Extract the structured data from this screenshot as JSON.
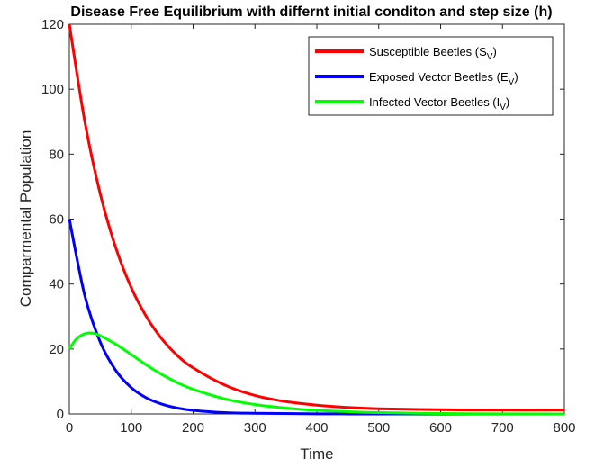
{
  "chart_data": {
    "type": "line",
    "title": "Disease Free Equilibrium with differnt initial conditon and step size (h)",
    "xlabel": "Time",
    "ylabel": "Comparmental Population",
    "xlim": [
      0,
      800
    ],
    "ylim": [
      0,
      120
    ],
    "xticks": [
      0,
      100,
      200,
      300,
      400,
      500,
      600,
      700,
      800
    ],
    "yticks": [
      0,
      20,
      40,
      60,
      80,
      100,
      120
    ],
    "grid": false,
    "legend_position": "top-right",
    "series": [
      {
        "name": "Susceptible Beetles (S",
        "name_sub": "V",
        "name_end": ")",
        "color": "#ff0000",
        "x": [
          0,
          25,
          50,
          75,
          100,
          125,
          150,
          175,
          200,
          250,
          300,
          350,
          400,
          450,
          500,
          600,
          700,
          800
        ],
        "y": [
          120,
          90.0,
          67.7,
          51.2,
          38.9,
          29.8,
          23.0,
          17.9,
          14.2,
          9.0,
          5.7,
          3.8,
          2.7,
          2.0,
          1.6,
          1.3,
          1.2,
          1.2
        ]
      },
      {
        "name": "Exposed Vector Beetles (E",
        "name_sub": "V",
        "name_end": ")",
        "color": "#0000ff",
        "x": [
          0,
          25,
          50,
          75,
          100,
          125,
          150,
          175,
          200,
          250,
          300,
          400,
          500,
          600,
          700,
          800
        ],
        "y": [
          60,
          36.4,
          22.1,
          13.4,
          8.1,
          4.9,
          3.0,
          1.8,
          1.1,
          0.4,
          0.2,
          0.05,
          0,
          0,
          0,
          0
        ]
      },
      {
        "name": "Infected Vector Beetles (I",
        "name_sub": "V",
        "name_end": ")",
        "color": "#00ff00",
        "x": [
          0,
          10,
          20,
          30,
          40,
          50,
          75,
          100,
          125,
          150,
          175,
          200,
          250,
          300,
          350,
          400,
          450,
          500,
          600,
          700,
          800
        ],
        "y": [
          20,
          22.8,
          24.3,
          24.9,
          24.8,
          24.1,
          21.5,
          18.3,
          15.0,
          12.1,
          9.6,
          7.6,
          4.7,
          2.9,
          1.8,
          1.1,
          0.7,
          0.4,
          0.15,
          0.05,
          0
        ]
      }
    ]
  }
}
